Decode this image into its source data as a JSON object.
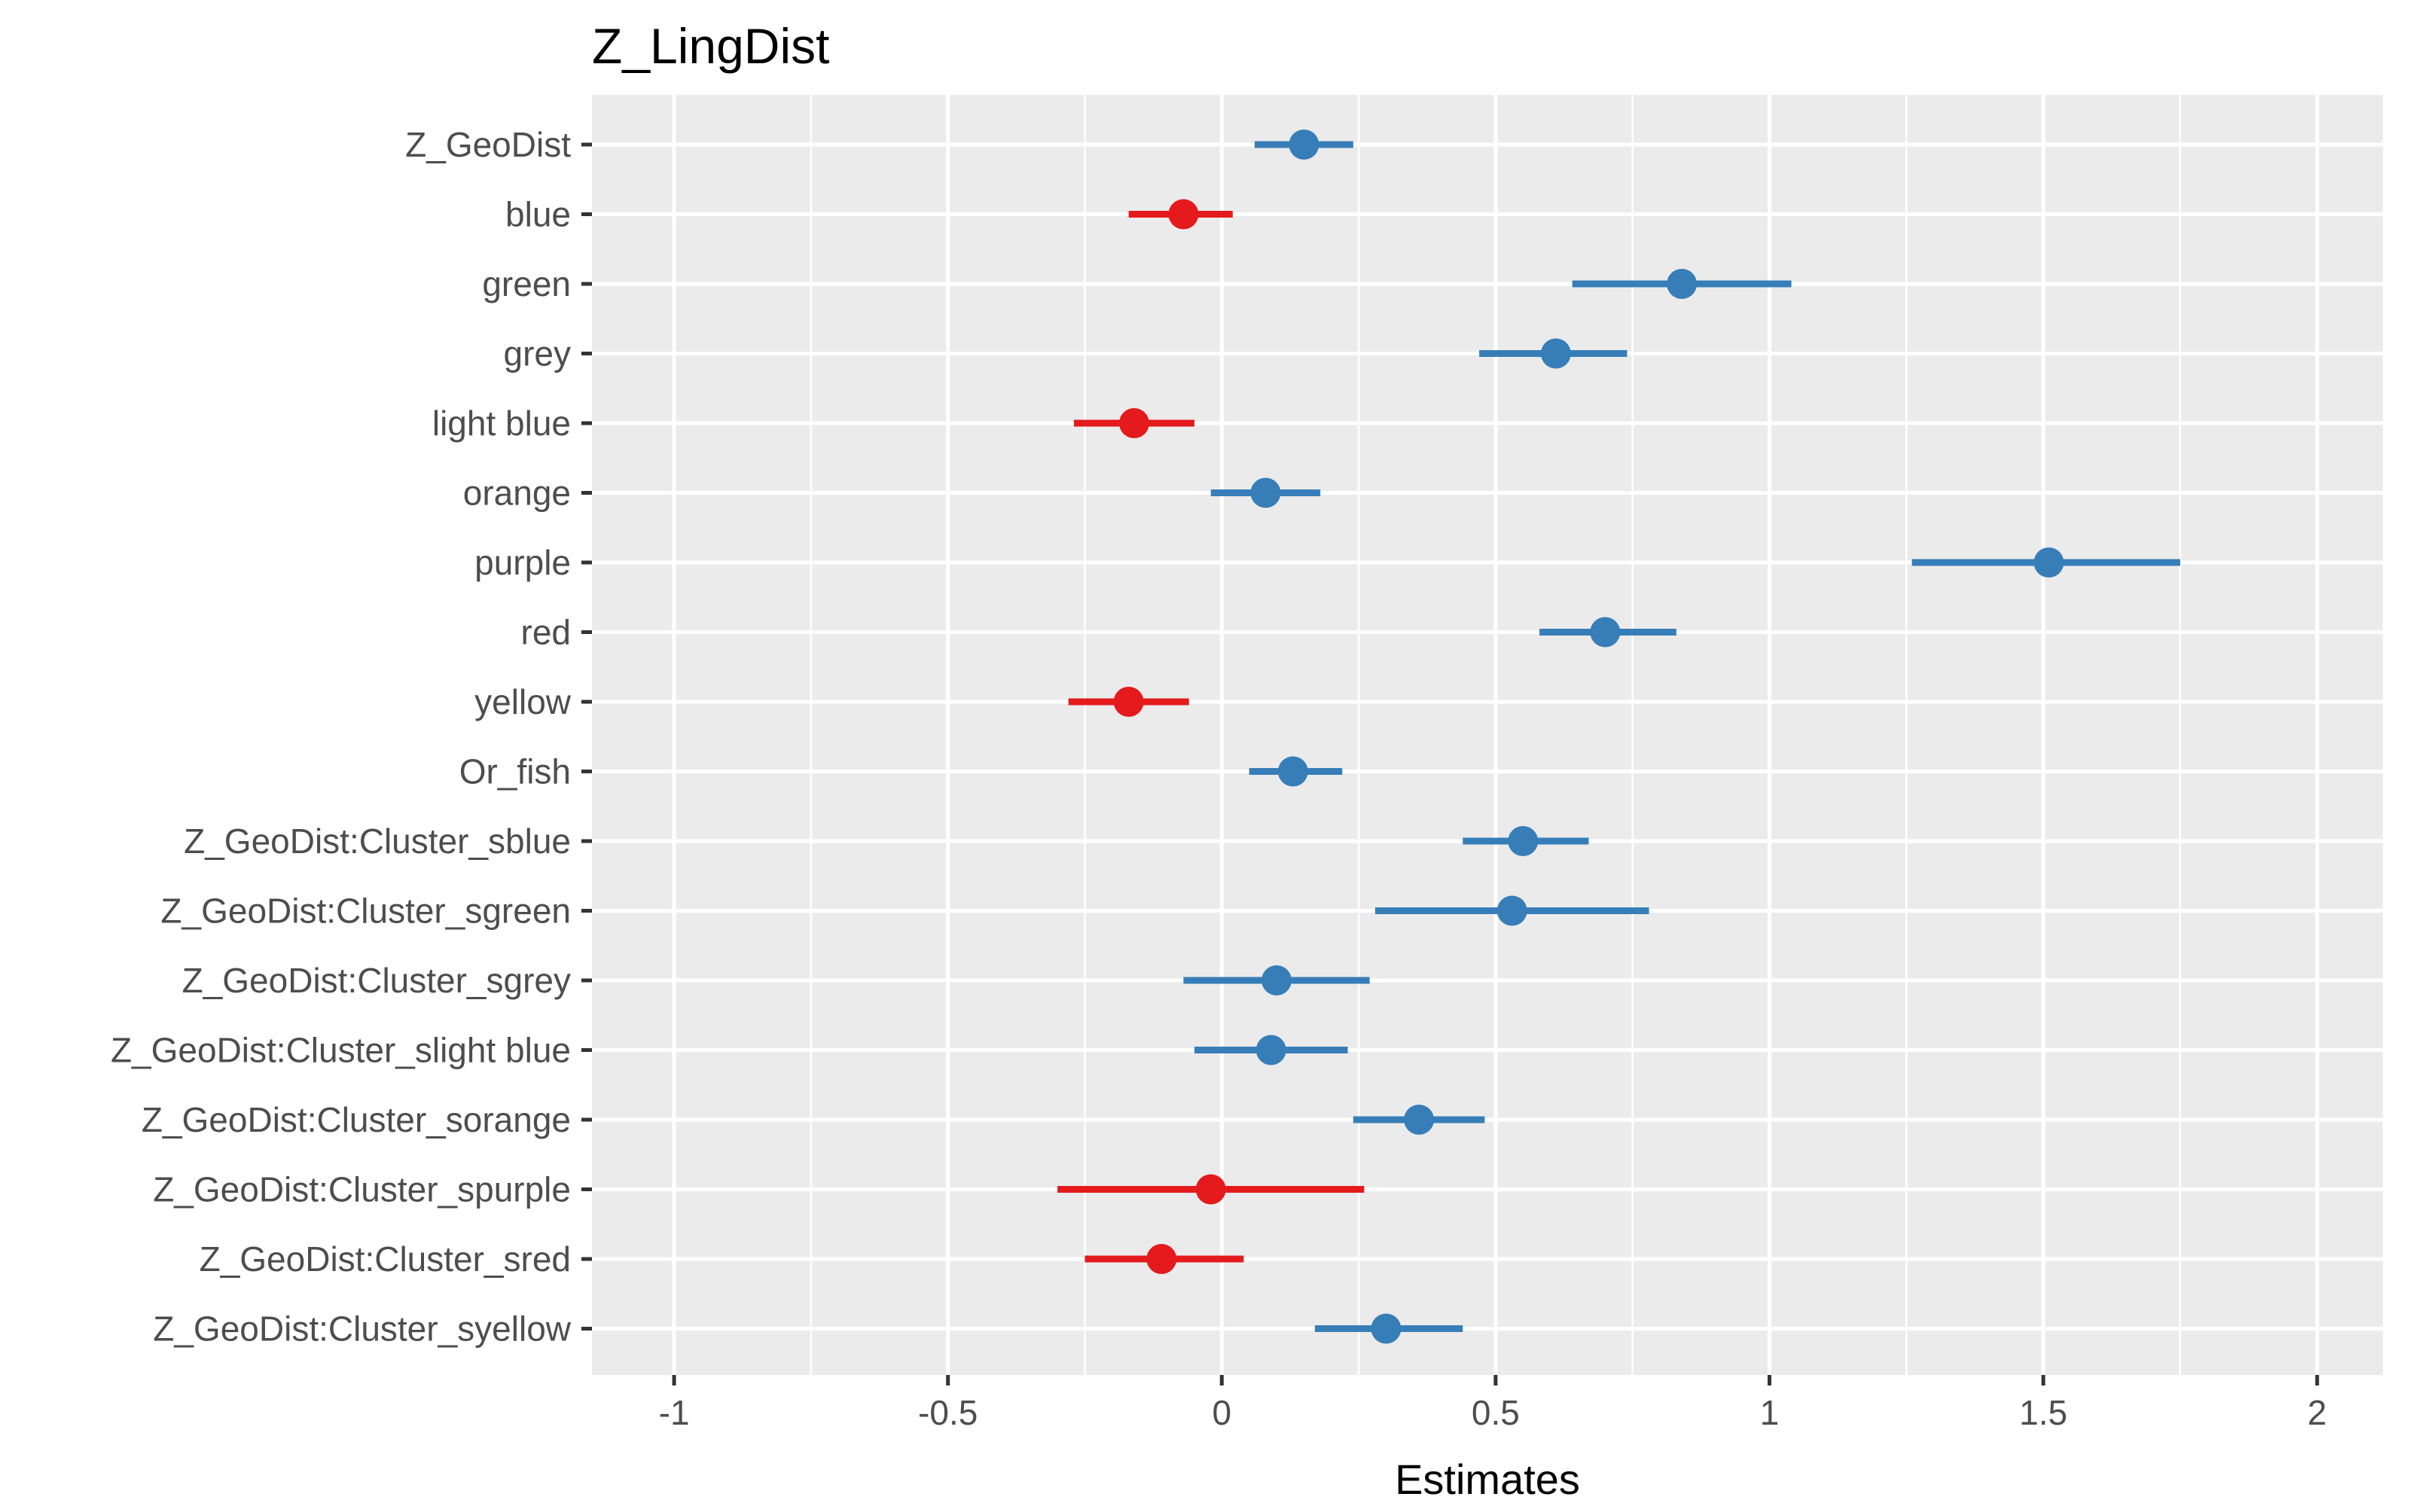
{
  "chart_data": {
    "type": "forest",
    "title": "Z_LingDist",
    "xlabel": "Estimates",
    "ylabel": "",
    "xlim": [
      -1.15,
      2.12
    ],
    "x_ticks": [
      -1,
      -0.5,
      0,
      0.5,
      1,
      1.5,
      2
    ],
    "x_tick_labels": [
      "-1",
      "-0.5",
      "0",
      "0.5",
      "1",
      "1.5",
      "2"
    ],
    "grid": true,
    "colors": {
      "positive": "#377eb8",
      "negative": "#e41a1c",
      "panel": "#ebebeb"
    },
    "terms": [
      {
        "label": "Z_GeoDist",
        "estimate": 0.15,
        "low": 0.06,
        "high": 0.24
      },
      {
        "label": "blue",
        "estimate": -0.07,
        "low": -0.17,
        "high": 0.02
      },
      {
        "label": "green",
        "estimate": 0.84,
        "low": 0.64,
        "high": 1.04
      },
      {
        "label": "grey",
        "estimate": 0.61,
        "low": 0.47,
        "high": 0.74
      },
      {
        "label": "light blue",
        "estimate": -0.16,
        "low": -0.27,
        "high": -0.05
      },
      {
        "label": "orange",
        "estimate": 0.08,
        "low": -0.02,
        "high": 0.18
      },
      {
        "label": "purple",
        "estimate": 1.51,
        "low": 1.26,
        "high": 1.75
      },
      {
        "label": "red",
        "estimate": 0.7,
        "low": 0.58,
        "high": 0.83
      },
      {
        "label": "yellow",
        "estimate": -0.17,
        "low": -0.28,
        "high": -0.06
      },
      {
        "label": "Or_fish",
        "estimate": 0.13,
        "low": 0.05,
        "high": 0.22
      },
      {
        "label": "Z_GeoDist:Cluster_sblue",
        "estimate": 0.55,
        "low": 0.44,
        "high": 0.67
      },
      {
        "label": "Z_GeoDist:Cluster_sgreen",
        "estimate": 0.53,
        "low": 0.28,
        "high": 0.78
      },
      {
        "label": "Z_GeoDist:Cluster_sgrey",
        "estimate": 0.1,
        "low": -0.07,
        "high": 0.27
      },
      {
        "label": "Z_GeoDist:Cluster_slight blue",
        "estimate": 0.09,
        "low": -0.05,
        "high": 0.23
      },
      {
        "label": "Z_GeoDist:Cluster_sorange",
        "estimate": 0.36,
        "low": 0.24,
        "high": 0.48
      },
      {
        "label": "Z_GeoDist:Cluster_spurple",
        "estimate": -0.02,
        "low": -0.3,
        "high": 0.26
      },
      {
        "label": "Z_GeoDist:Cluster_sred",
        "estimate": -0.11,
        "low": -0.25,
        "high": 0.04
      },
      {
        "label": "Z_GeoDist:Cluster_syellow",
        "estimate": 0.3,
        "low": 0.17,
        "high": 0.44
      }
    ]
  }
}
